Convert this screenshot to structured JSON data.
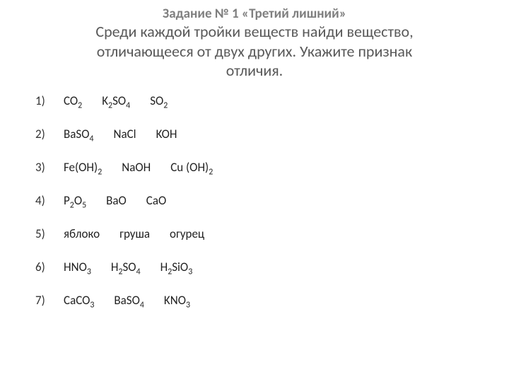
{
  "colors": {
    "background": "#ffffff",
    "title_gray": "#7f7f7f",
    "subtitle_gray": "#595959",
    "body_text": "#222222"
  },
  "typography": {
    "title_fontsize_pt": 14,
    "subtitle_fontsize_pt": 17,
    "body_fontsize_pt": 13,
    "font_family": "Calibri"
  },
  "title": {
    "lead": "Задание № 1",
    "name": "«Третий лишний»",
    "description_line1": "Среди каждой тройки веществ найди вещество,",
    "description_line2": "отличающееся от двух других. Укажите признак",
    "description_line3": "отличия."
  },
  "rows": [
    {
      "num": "1)",
      "items": [
        {
          "kind": "formula",
          "parts": [
            [
              "t",
              "CO"
            ],
            [
              "s",
              "2"
            ]
          ],
          "answer": false
        },
        {
          "kind": "formula",
          "parts": [
            [
              "t",
              "K"
            ],
            [
              "s",
              "2"
            ],
            [
              "t",
              "SO"
            ],
            [
              "s",
              "4"
            ]
          ],
          "answer": true
        },
        {
          "kind": "formula",
          "parts": [
            [
              "t",
              "SO"
            ],
            [
              "s",
              "2"
            ]
          ],
          "answer": false
        }
      ]
    },
    {
      "num": "2)",
      "items": [
        {
          "kind": "formula",
          "parts": [
            [
              "t",
              "BaSO"
            ],
            [
              "s",
              "4"
            ]
          ],
          "answer": false
        },
        {
          "kind": "formula",
          "parts": [
            [
              "t",
              "NaCl"
            ]
          ],
          "answer": false
        },
        {
          "kind": "formula",
          "parts": [
            [
              "t",
              "KOH"
            ]
          ],
          "answer": true
        }
      ]
    },
    {
      "num": "3)",
      "items": [
        {
          "kind": "formula",
          "parts": [
            [
              "t",
              "Fe(OH)"
            ],
            [
              "s",
              "2"
            ]
          ],
          "answer": false
        },
        {
          "kind": "formula",
          "parts": [
            [
              "t",
              "NaOH"
            ]
          ],
          "answer": true
        },
        {
          "kind": "formula",
          "parts": [
            [
              "t",
              "Cu (OH)"
            ],
            [
              "s",
              "2"
            ]
          ],
          "answer": false
        }
      ]
    },
    {
      "num": "4)",
      "items": [
        {
          "kind": "formula",
          "parts": [
            [
              "t",
              "P"
            ],
            [
              "s",
              "2"
            ],
            [
              "t",
              "O"
            ],
            [
              "s",
              "5"
            ]
          ],
          "answer": true
        },
        {
          "kind": "formula",
          "parts": [
            [
              "t",
              "BaO"
            ]
          ],
          "answer": false
        },
        {
          "kind": "formula",
          "parts": [
            [
              "t",
              "CaO"
            ]
          ],
          "answer": false
        }
      ]
    },
    {
      "num": "5)",
      "items": [
        {
          "kind": "text",
          "text": "яблоко",
          "answer": false
        },
        {
          "kind": "text",
          "text": "груша",
          "answer": false
        },
        {
          "kind": "text",
          "text": "огурец",
          "answer": true
        }
      ]
    },
    {
      "num": "6)",
      "items": [
        {
          "kind": "formula",
          "parts": [
            [
              "t",
              "HNO"
            ],
            [
              "s",
              "3"
            ]
          ],
          "answer": true
        },
        {
          "kind": "formula",
          "parts": [
            [
              "t",
              "H"
            ],
            [
              "s",
              "2"
            ],
            [
              "t",
              "SO"
            ],
            [
              "s",
              "4"
            ]
          ],
          "answer": false
        },
        {
          "kind": "formula",
          "parts": [
            [
              "t",
              "H"
            ],
            [
              "s",
              "2"
            ],
            [
              "t",
              "SiO"
            ],
            [
              "s",
              "3"
            ]
          ],
          "answer": false
        }
      ]
    },
    {
      "num": "7)",
      "items": [
        {
          "kind": "formula",
          "parts": [
            [
              "t",
              "CaCO"
            ],
            [
              "s",
              "3"
            ]
          ],
          "answer": false
        },
        {
          "kind": "formula",
          "parts": [
            [
              "t",
              "BaSO"
            ],
            [
              "s",
              "4"
            ]
          ],
          "answer": false
        },
        {
          "kind": "formula",
          "parts": [
            [
              "t",
              "KNO"
            ],
            [
              "s",
              "3"
            ]
          ],
          "answer": true
        }
      ]
    }
  ]
}
